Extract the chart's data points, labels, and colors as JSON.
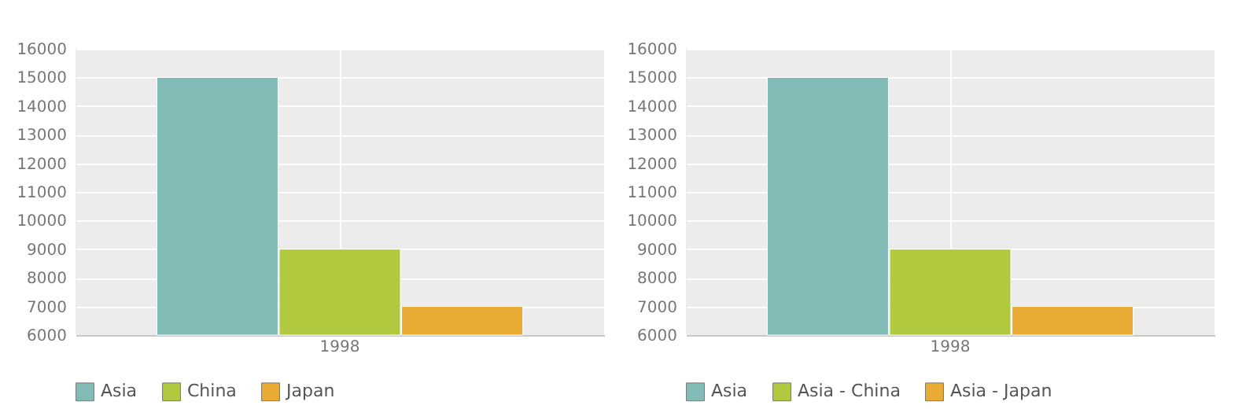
{
  "chart_data": [
    {
      "type": "bar",
      "categories": [
        "1998"
      ],
      "series": [
        {
          "name": "Asia",
          "color": "#82bab5",
          "values": [
            15000
          ]
        },
        {
          "name": "China",
          "color": "#b0c93e",
          "values": [
            9000
          ]
        },
        {
          "name": "Japan",
          "color": "#eaab34",
          "values": [
            7000
          ]
        }
      ],
      "ylim": [
        6000,
        16000
      ],
      "yticks": [
        6000,
        7000,
        8000,
        9000,
        10000,
        11000,
        12000,
        13000,
        14000,
        15000,
        16000
      ],
      "grid": true,
      "legend": "bottom"
    },
    {
      "type": "bar",
      "categories": [
        "1998"
      ],
      "series": [
        {
          "name": "Asia",
          "color": "#82bab5",
          "values": [
            15000
          ]
        },
        {
          "name": "Asia - China",
          "color": "#b0c93e",
          "values": [
            9000
          ]
        },
        {
          "name": "Asia - Japan",
          "color": "#eaab34",
          "values": [
            7000
          ]
        }
      ],
      "ylim": [
        6000,
        16000
      ],
      "yticks": [
        6000,
        7000,
        8000,
        9000,
        10000,
        11000,
        12000,
        13000,
        14000,
        15000,
        16000
      ],
      "grid": true,
      "legend": "bottom"
    }
  ]
}
